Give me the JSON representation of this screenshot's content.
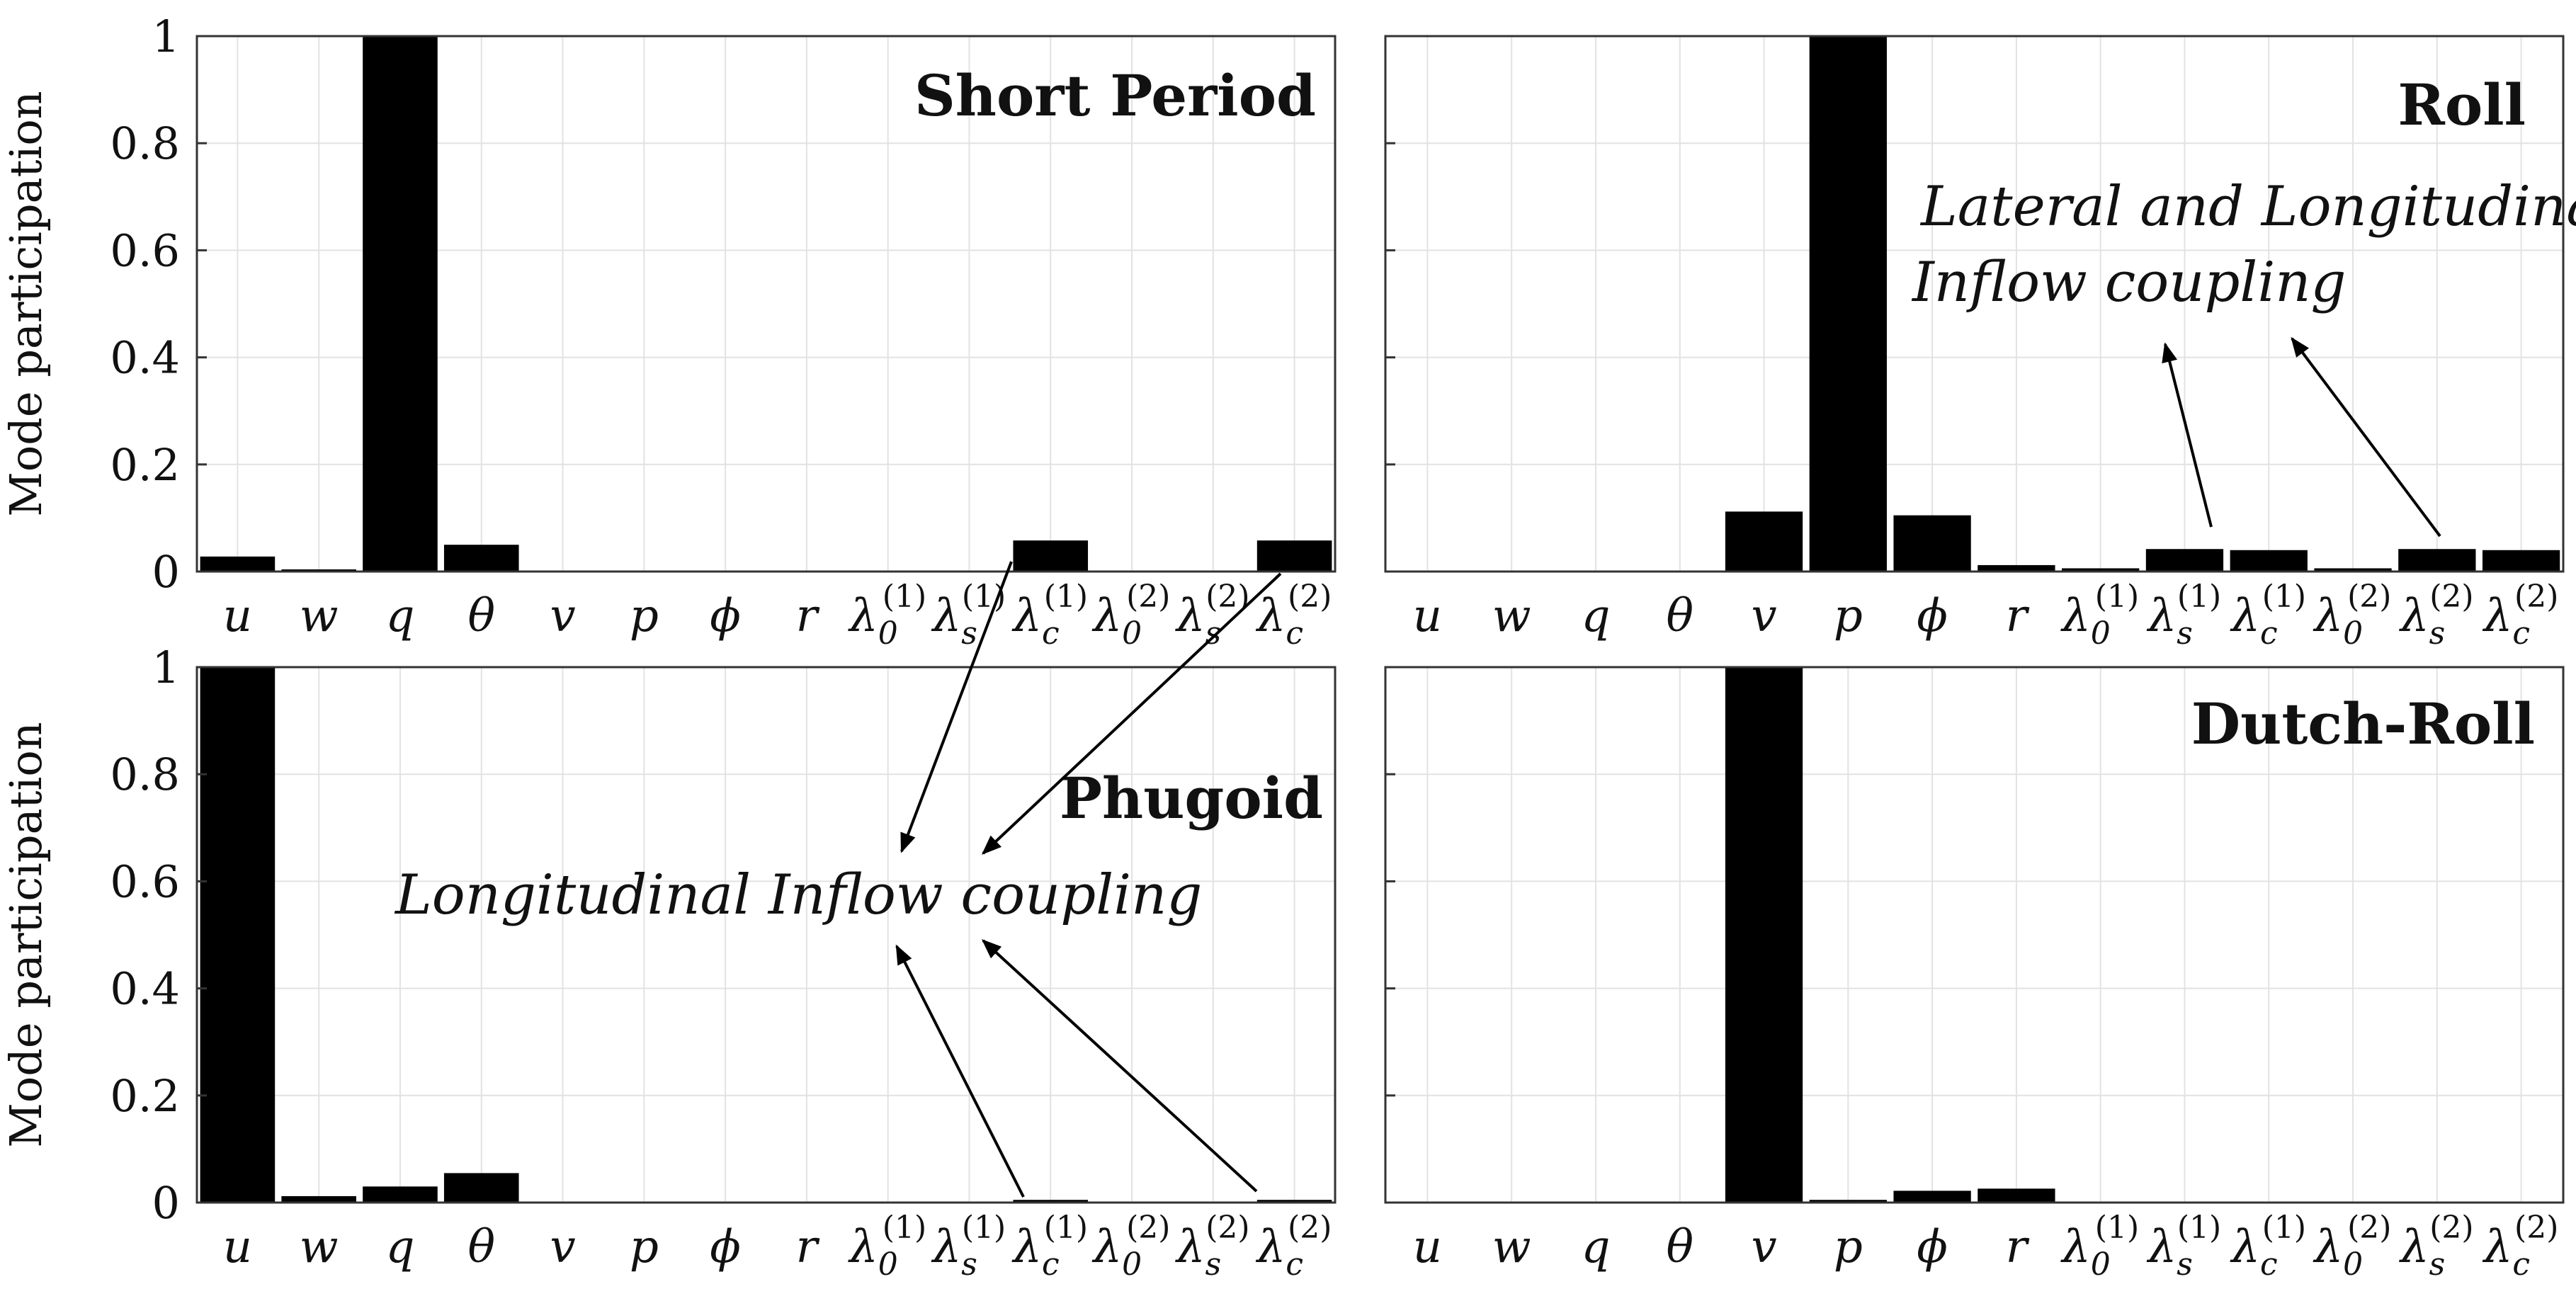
{
  "chart_data": [
    {
      "type": "bar",
      "title": "Short Period",
      "ylabel": "Mode participation",
      "ylim": [
        0,
        1
      ],
      "yticks": [
        "0",
        "0.2",
        "0.4",
        "0.6",
        "0.8",
        "1"
      ],
      "categories": [
        "u",
        "w",
        "q",
        "θ",
        "v",
        "p",
        "ϕ",
        "r",
        "λ0(1)",
        "λs(1)",
        "λc(1)",
        "λ0(2)",
        "λs(2)",
        "λc(2)"
      ],
      "values": [
        0.028,
        0.004,
        1.0,
        0.05,
        0,
        0,
        0,
        0,
        0,
        0,
        0.058,
        0,
        0,
        0.058
      ],
      "grid": true
    },
    {
      "type": "bar",
      "title": "Roll",
      "ylabel": "",
      "ylim": [
        0,
        1
      ],
      "categories": [
        "u",
        "w",
        "q",
        "θ",
        "v",
        "p",
        "ϕ",
        "r",
        "λ0(1)",
        "λs(1)",
        "λc(1)",
        "λ0(2)",
        "λs(2)",
        "λc(2)"
      ],
      "values": [
        0,
        0,
        0,
        0,
        0.112,
        1.0,
        0.105,
        0.012,
        0.006,
        0.042,
        0.04,
        0.006,
        0.042,
        0.04
      ],
      "grid": true
    },
    {
      "type": "bar",
      "title": "Phugoid",
      "ylabel": "Mode participation",
      "ylim": [
        0,
        1
      ],
      "yticks": [
        "0",
        "0.2",
        "0.4",
        "0.6",
        "0.8",
        "1"
      ],
      "categories": [
        "u",
        "w",
        "q",
        "θ",
        "v",
        "p",
        "ϕ",
        "r",
        "λ0(1)",
        "λs(1)",
        "λc(1)",
        "λ0(2)",
        "λs(2)",
        "λc(2)"
      ],
      "values": [
        1.0,
        0.012,
        0.03,
        0.055,
        0,
        0,
        0,
        0,
        0,
        0,
        0.005,
        0,
        0,
        0.005
      ],
      "grid": true
    },
    {
      "type": "bar",
      "title": "Dutch-Roll",
      "ylabel": "",
      "ylim": [
        0,
        1
      ],
      "categories": [
        "u",
        "w",
        "q",
        "θ",
        "v",
        "p",
        "ϕ",
        "r",
        "λ0(1)",
        "λs(1)",
        "λc(1)",
        "λ0(2)",
        "λs(2)",
        "λc(2)"
      ],
      "values": [
        0,
        0,
        0,
        0,
        1.0,
        0.005,
        0.022,
        0.026,
        0,
        0,
        0,
        0,
        0,
        0
      ],
      "grid": true
    }
  ],
  "annotations": {
    "lateral_line1": "Lateral and Longitudinal",
    "lateral_line2": "Inflow coupling",
    "longitudinal": "Longitudinal Inflow coupling"
  },
  "colors": {
    "bar": "#000000",
    "grid": "#e2e2e2",
    "axis": "#333333"
  }
}
